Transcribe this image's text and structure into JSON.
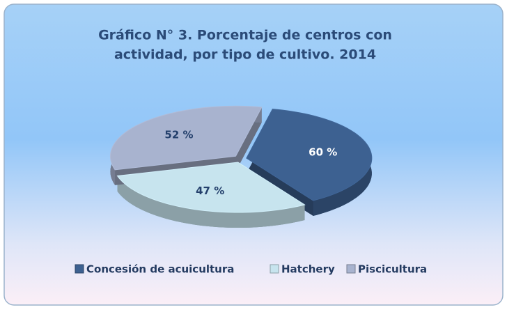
{
  "chart_data": {
    "type": "pie",
    "title": "Gráfico N° 3. Porcentaje de centros con actividad, por tipo de cultivo. 2014",
    "title_lines": [
      "Gráfico N° 3. Porcentaje de centros con",
      "actividad, por tipo de cultivo. 2014"
    ],
    "categories": [
      "Concesión de acuicultura",
      "Hatchery",
      "Piscicultura"
    ],
    "values": [
      60,
      47,
      52
    ],
    "value_labels": [
      "60 %",
      "47 %",
      "52 %"
    ],
    "colors": [
      "#3d6191",
      "#c7e4ee",
      "#a8b3cf"
    ],
    "legend": "bottom"
  }
}
